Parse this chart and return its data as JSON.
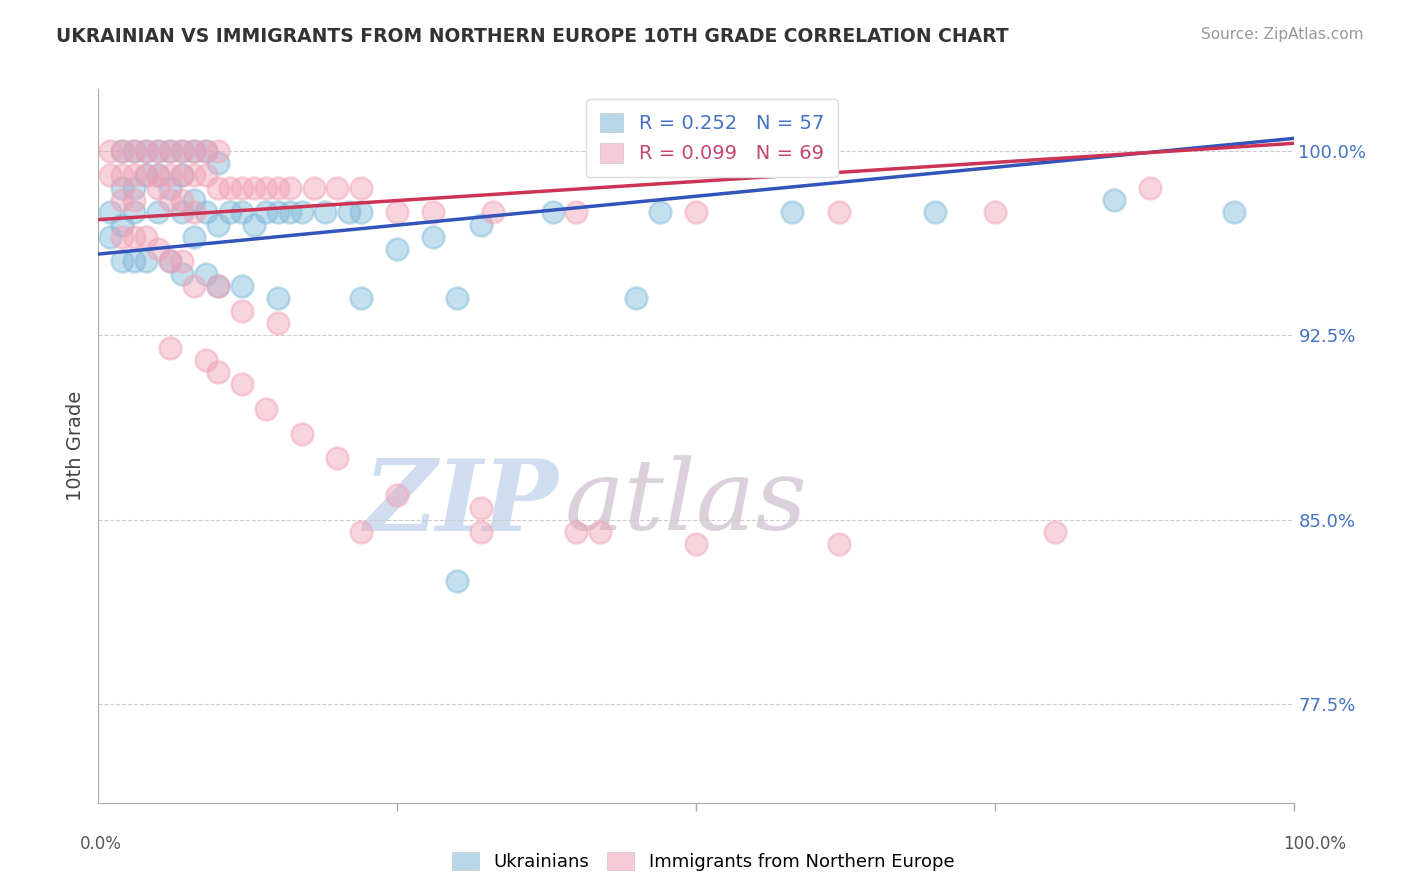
{
  "title": "UKRAINIAN VS IMMIGRANTS FROM NORTHERN EUROPE 10TH GRADE CORRELATION CHART",
  "source": "Source: ZipAtlas.com",
  "ylabel": "10th Grade",
  "r_blue": 0.252,
  "n_blue": 57,
  "r_pink": 0.099,
  "n_pink": 69,
  "ytick_vals": [
    0.775,
    0.85,
    0.925,
    1.0
  ],
  "ytick_labels": [
    "77.5%",
    "85.0%",
    "92.5%",
    "100.0%"
  ],
  "xlim": [
    0.0,
    1.0
  ],
  "ylim": [
    0.735,
    1.025
  ],
  "blue_color": "#7EB8D8",
  "pink_color": "#F0A0B5",
  "blue_line_color": "#3355BB",
  "pink_line_color": "#CC3355",
  "background_color": "#FFFFFF",
  "grid_color": "#CCCCCC",
  "watermark_color": "#E0EAF5",
  "blue_x": [
    0.01,
    0.01,
    0.02,
    0.02,
    0.02,
    0.03,
    0.03,
    0.03,
    0.04,
    0.04,
    0.05,
    0.05,
    0.05,
    0.06,
    0.06,
    0.07,
    0.07,
    0.07,
    0.08,
    0.08,
    0.08,
    0.09,
    0.09,
    0.1,
    0.1,
    0.11,
    0.12,
    0.13,
    0.14,
    0.15,
    0.16,
    0.17,
    0.19,
    0.21,
    0.22,
    0.25,
    0.28,
    0.32,
    0.38,
    0.47,
    0.58,
    0.7,
    0.85,
    0.95,
    0.02,
    0.03,
    0.04,
    0.06,
    0.07,
    0.09,
    0.1,
    0.12,
    0.15,
    0.22,
    0.3,
    0.45,
    0.3
  ],
  "blue_y": [
    0.975,
    0.965,
    1.0,
    0.985,
    0.97,
    1.0,
    0.985,
    0.975,
    1.0,
    0.99,
    1.0,
    0.99,
    0.975,
    1.0,
    0.985,
    1.0,
    0.99,
    0.975,
    1.0,
    0.98,
    0.965,
    1.0,
    0.975,
    0.995,
    0.97,
    0.975,
    0.975,
    0.97,
    0.975,
    0.975,
    0.975,
    0.975,
    0.975,
    0.975,
    0.975,
    0.96,
    0.965,
    0.97,
    0.975,
    0.975,
    0.975,
    0.975,
    0.98,
    0.975,
    0.955,
    0.955,
    0.955,
    0.955,
    0.95,
    0.95,
    0.945,
    0.945,
    0.94,
    0.94,
    0.94,
    0.94,
    0.825
  ],
  "pink_x": [
    0.01,
    0.01,
    0.02,
    0.02,
    0.02,
    0.03,
    0.03,
    0.03,
    0.04,
    0.04,
    0.05,
    0.05,
    0.05,
    0.06,
    0.06,
    0.06,
    0.07,
    0.07,
    0.07,
    0.08,
    0.08,
    0.08,
    0.09,
    0.09,
    0.1,
    0.1,
    0.11,
    0.12,
    0.13,
    0.14,
    0.15,
    0.16,
    0.18,
    0.2,
    0.22,
    0.25,
    0.28,
    0.33,
    0.4,
    0.5,
    0.62,
    0.75,
    0.88,
    0.02,
    0.03,
    0.04,
    0.05,
    0.06,
    0.07,
    0.08,
    0.1,
    0.12,
    0.15,
    0.06,
    0.09,
    0.1,
    0.12,
    0.14,
    0.17,
    0.2,
    0.25,
    0.32,
    0.4,
    0.5,
    0.62,
    0.8,
    0.22,
    0.32,
    0.42
  ],
  "pink_y": [
    1.0,
    0.99,
    1.0,
    0.99,
    0.98,
    1.0,
    0.99,
    0.98,
    1.0,
    0.99,
    1.0,
    0.99,
    0.985,
    1.0,
    0.99,
    0.98,
    1.0,
    0.99,
    0.98,
    1.0,
    0.99,
    0.975,
    1.0,
    0.99,
    1.0,
    0.985,
    0.985,
    0.985,
    0.985,
    0.985,
    0.985,
    0.985,
    0.985,
    0.985,
    0.985,
    0.975,
    0.975,
    0.975,
    0.975,
    0.975,
    0.975,
    0.975,
    0.985,
    0.965,
    0.965,
    0.965,
    0.96,
    0.955,
    0.955,
    0.945,
    0.945,
    0.935,
    0.93,
    0.92,
    0.915,
    0.91,
    0.905,
    0.895,
    0.885,
    0.875,
    0.86,
    0.855,
    0.845,
    0.84,
    0.84,
    0.845,
    0.845,
    0.845,
    0.845
  ],
  "blue_line_x0": 0.0,
  "blue_line_y0": 0.958,
  "blue_line_x1": 1.0,
  "blue_line_y1": 1.005,
  "pink_line_x0": 0.0,
  "pink_line_y0": 0.972,
  "pink_line_x1": 1.0,
  "pink_line_y1": 1.003
}
